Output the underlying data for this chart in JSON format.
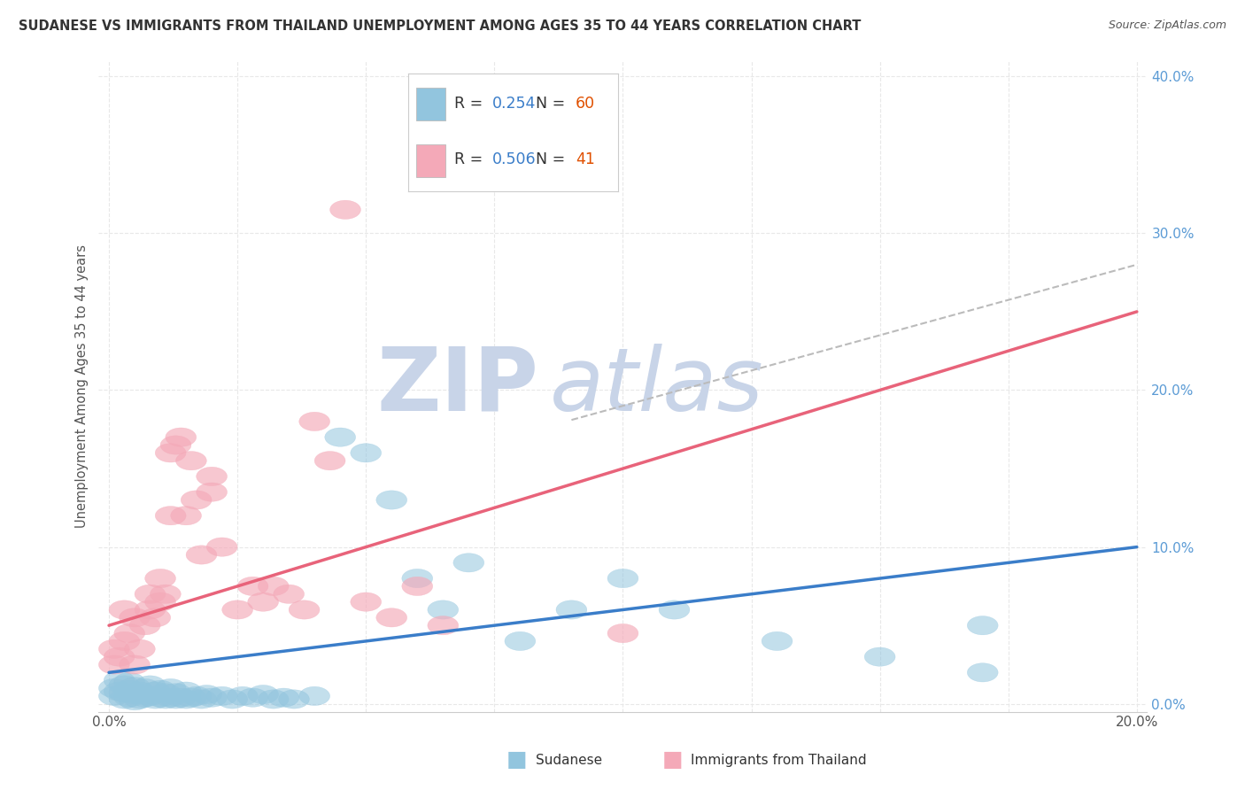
{
  "title": "SUDANESE VS IMMIGRANTS FROM THAILAND UNEMPLOYMENT AMONG AGES 35 TO 44 YEARS CORRELATION CHART",
  "source": "Source: ZipAtlas.com",
  "ylabel": "Unemployment Among Ages 35 to 44 years",
  "xlim": [
    -0.002,
    0.202
  ],
  "ylim": [
    -0.005,
    0.41
  ],
  "xticks": [
    0.0,
    0.025,
    0.05,
    0.075,
    0.1,
    0.125,
    0.15,
    0.175,
    0.2
  ],
  "xtick_labels": [
    "0.0%",
    "",
    "",
    "",
    "",
    "",
    "",
    "",
    "20.0%"
  ],
  "ytick_labels_right": [
    "0.0%",
    "10.0%",
    "20.0%",
    "30.0%",
    "40.0%"
  ],
  "yticks": [
    0.0,
    0.1,
    0.2,
    0.3,
    0.4
  ],
  "sudanese_R": 0.254,
  "sudanese_N": 60,
  "thailand_R": 0.506,
  "thailand_N": 41,
  "blue_color": "#92C5DE",
  "blue_edge_color": "#92C5DE",
  "pink_color": "#F4A9B8",
  "pink_edge_color": "#F4A9B8",
  "blue_line_color": "#3A7DC9",
  "blue_dash_color": "#AAAAAA",
  "pink_line_color": "#E8637A",
  "title_color": "#333333",
  "legend_R_color": "#3A7DC9",
  "legend_N_color": "#E05000",
  "background_color": "#ffffff",
  "grid_color": "#e8e8e8",
  "watermark_zip_color": "#C8D4E8",
  "watermark_atlas_color": "#C8D4E8"
}
